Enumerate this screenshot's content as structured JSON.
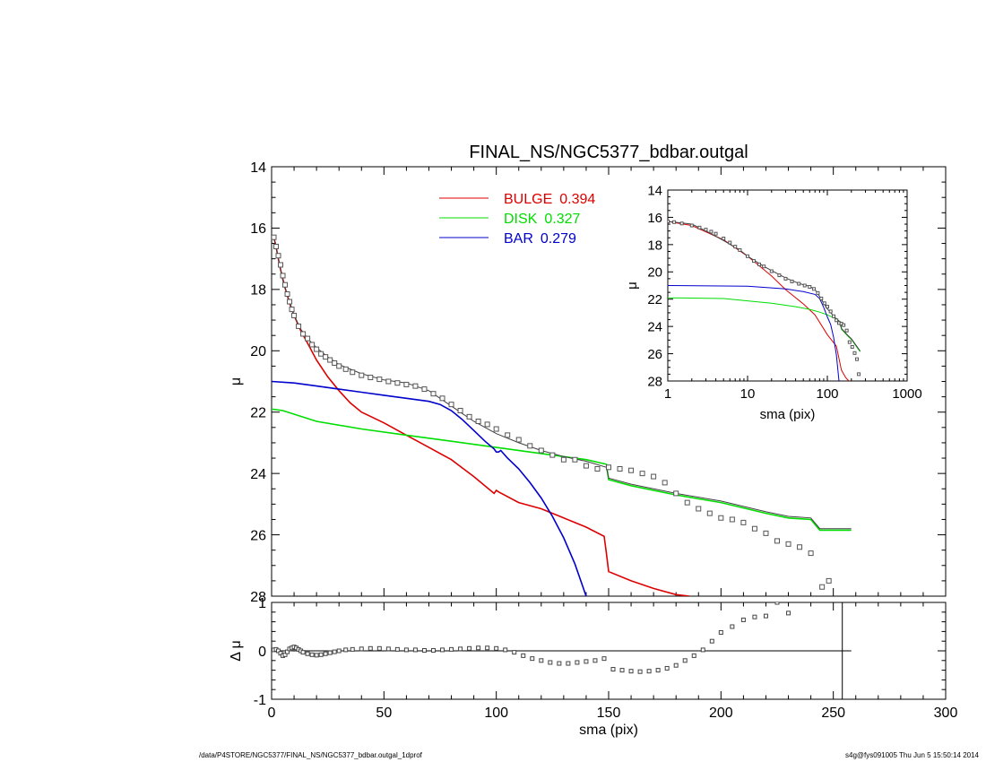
{
  "title": "FINAL_NS/NGC5377_bdbar.outgal",
  "footer": {
    "left": "/data/P4STORE/NGC5377/FINAL_NS/NGC5377_bdbar.outgal_1dprof",
    "right": "s4g@fys091005  Thu Jun  5 15:50:14 2014"
  },
  "colors": {
    "bulge": "#dd0000",
    "disk": "#00dd00",
    "bar": "#0000cc",
    "model": "#404040",
    "data": "#555555"
  },
  "chart_data": [
    {
      "type": "scatter",
      "panel": "main",
      "title": "FINAL_NS/NGC5377_bdbar.outgal",
      "xlabel": "sma (pix)",
      "ylabel": "μ",
      "xlim": [
        0,
        300
      ],
      "ylim": [
        28,
        14
      ],
      "xticks": [
        "0",
        "50",
        "100",
        "150",
        "200",
        "250",
        "300"
      ],
      "yticks": [
        "14",
        "16",
        "18",
        "20",
        "22",
        "24",
        "26",
        "28"
      ],
      "legend_position": "top-center",
      "legend": [
        {
          "label": "BULGE",
          "value": "0.394"
        },
        {
          "label": "DISK",
          "value": "0.327"
        },
        {
          "label": "BAR",
          "value": "0.279"
        }
      ],
      "series": [
        {
          "name": "BULGE",
          "color": "#dd0000",
          "x": [
            1,
            2,
            3,
            4,
            5,
            6,
            8,
            10,
            13,
            16,
            20,
            25,
            30,
            35,
            40,
            50,
            60,
            70,
            80,
            90,
            99,
            100,
            101,
            110,
            120,
            130,
            140,
            148,
            149,
            150,
            160,
            170,
            180,
            186
          ],
          "y": [
            16.3,
            16.6,
            17.0,
            17.35,
            17.65,
            17.95,
            18.45,
            18.85,
            19.35,
            19.75,
            20.3,
            20.85,
            21.3,
            21.7,
            22.0,
            22.35,
            22.75,
            23.15,
            23.55,
            24.1,
            24.65,
            24.55,
            24.6,
            24.95,
            25.15,
            25.45,
            25.75,
            26.05,
            26.6,
            27.2,
            27.5,
            27.75,
            27.95,
            28.0
          ]
        },
        {
          "name": "DISK",
          "color": "#00dd00",
          "x": [
            0,
            5,
            20,
            40,
            60,
            80,
            100,
            120,
            140,
            149,
            150,
            160,
            180,
            200,
            220,
            230,
            240,
            244,
            250,
            258
          ],
          "y": [
            21.9,
            21.95,
            22.3,
            22.55,
            22.75,
            22.95,
            23.15,
            23.35,
            23.55,
            23.7,
            24.2,
            24.4,
            24.7,
            24.95,
            25.3,
            25.45,
            25.5,
            25.85,
            25.85,
            25.85
          ]
        },
        {
          "name": "BAR",
          "color": "#0000cc",
          "x": [
            0,
            10,
            20,
            30,
            40,
            50,
            60,
            70,
            75,
            80,
            85,
            90,
            95,
            99,
            100,
            101,
            102,
            105,
            110,
            115,
            120,
            125,
            130,
            135,
            140
          ],
          "y": [
            21.0,
            21.05,
            21.15,
            21.25,
            21.35,
            21.45,
            21.55,
            21.65,
            21.75,
            21.95,
            22.25,
            22.6,
            22.95,
            23.2,
            23.3,
            23.3,
            23.25,
            23.5,
            23.85,
            24.3,
            24.8,
            25.4,
            26.1,
            26.95,
            28.0
          ]
        },
        {
          "name": "model",
          "color": "#404040",
          "x": [
            1,
            3,
            5,
            8,
            10,
            13,
            16,
            20,
            25,
            30,
            40,
            50,
            60,
            70,
            80,
            90,
            100,
            110,
            120,
            130,
            140,
            149,
            150,
            160,
            180,
            200,
            220,
            230,
            240,
            244,
            250,
            258
          ],
          "y": [
            16.3,
            17.0,
            17.7,
            18.4,
            18.85,
            19.3,
            19.6,
            19.9,
            20.2,
            20.45,
            20.75,
            20.95,
            21.05,
            21.3,
            21.8,
            22.3,
            22.7,
            23.0,
            23.25,
            23.45,
            23.6,
            23.8,
            24.15,
            24.35,
            24.65,
            24.9,
            25.25,
            25.4,
            25.45,
            25.8,
            25.8,
            25.8
          ]
        },
        {
          "name": "data",
          "color": "#555555",
          "marker": "open-square",
          "x": [
            1,
            2,
            3,
            4,
            5,
            6,
            7,
            8,
            9,
            10,
            12,
            14,
            16,
            18,
            20,
            22,
            24,
            26,
            28,
            30,
            33,
            36,
            40,
            44,
            48,
            52,
            56,
            60,
            64,
            68,
            72,
            76,
            80,
            84,
            88,
            92,
            96,
            100,
            105,
            110,
            115,
            120,
            125,
            130,
            135,
            140,
            145,
            150,
            155,
            160,
            165,
            170,
            175,
            180,
            185,
            190,
            195,
            200,
            205,
            210,
            215,
            220,
            225,
            230,
            235,
            240,
            245,
            248
          ],
          "y": [
            16.3,
            16.6,
            16.9,
            17.2,
            17.55,
            17.85,
            18.15,
            18.4,
            18.65,
            18.85,
            19.2,
            19.45,
            19.6,
            19.8,
            19.95,
            20.1,
            20.2,
            20.3,
            20.4,
            20.5,
            20.6,
            20.7,
            20.8,
            20.87,
            20.93,
            21.0,
            21.05,
            21.1,
            21.15,
            21.25,
            21.4,
            21.55,
            21.75,
            21.95,
            22.15,
            22.3,
            22.4,
            22.55,
            22.75,
            22.9,
            23.1,
            23.25,
            23.4,
            23.55,
            23.55,
            23.75,
            23.85,
            23.8,
            23.85,
            23.9,
            24.0,
            24.1,
            24.3,
            24.65,
            24.95,
            25.15,
            25.3,
            25.45,
            25.5,
            25.6,
            25.8,
            25.95,
            26.2,
            26.3,
            26.4,
            26.6,
            27.7,
            27.5
          ]
        }
      ]
    },
    {
      "type": "scatter",
      "panel": "inset",
      "xlabel": "sma (pix)",
      "ylabel": "μ",
      "xlim": [
        1,
        1000
      ],
      "xscale": "log",
      "ylim": [
        28,
        14
      ],
      "xticks": [
        "1",
        "10",
        "100",
        "1000"
      ],
      "yticks": [
        "14",
        "16",
        "18",
        "20",
        "22",
        "24",
        "26",
        "28"
      ],
      "series": [
        {
          "name": "BULGE",
          "color": "#dd0000",
          "x": [
            1,
            2,
            5,
            10,
            20,
            30,
            50,
            70,
            100,
            130,
            150,
            170,
            186
          ],
          "y": [
            16.3,
            16.6,
            17.65,
            18.85,
            20.3,
            21.3,
            22.35,
            23.15,
            24.6,
            25.45,
            27.2,
            27.75,
            28.0
          ]
        },
        {
          "name": "DISK",
          "color": "#00dd00",
          "x": [
            1,
            5,
            20,
            40,
            60,
            80,
            100,
            130,
            149,
            150,
            180,
            200,
            230,
            258
          ],
          "y": [
            21.9,
            21.95,
            22.3,
            22.55,
            22.75,
            22.95,
            23.15,
            23.45,
            23.7,
            24.2,
            24.7,
            24.95,
            25.45,
            25.85
          ]
        },
        {
          "name": "BAR",
          "color": "#0000cc",
          "x": [
            1,
            10,
            30,
            50,
            70,
            80,
            90,
            100,
            110,
            120,
            130,
            140
          ],
          "y": [
            21.0,
            21.05,
            21.25,
            21.45,
            21.65,
            21.95,
            22.6,
            23.3,
            23.85,
            24.8,
            26.1,
            28.0
          ]
        },
        {
          "name": "model",
          "color": "#404040",
          "x": [
            1,
            2,
            3,
            5,
            8,
            10,
            16,
            20,
            30,
            40,
            50,
            60,
            70,
            80,
            90,
            100,
            120,
            140,
            150,
            180,
            200,
            230,
            258
          ],
          "y": [
            16.3,
            16.5,
            17.0,
            17.7,
            18.4,
            18.85,
            19.6,
            19.9,
            20.45,
            20.75,
            20.95,
            21.05,
            21.3,
            21.8,
            22.3,
            22.7,
            23.25,
            23.6,
            24.15,
            24.65,
            24.9,
            25.4,
            25.8
          ]
        },
        {
          "name": "data",
          "color": "#555555",
          "marker": "open-square",
          "x": [
            1,
            1.2,
            1.5,
            2,
            2.5,
            3,
            3.5,
            4,
            5,
            6,
            7,
            8,
            10,
            12,
            14,
            16,
            20,
            25,
            30,
            36,
            44,
            52,
            60,
            68,
            76,
            84,
            92,
            100,
            110,
            120,
            130,
            140,
            150,
            160,
            175,
            190,
            205,
            220,
            235,
            248
          ],
          "y": [
            16.3,
            16.35,
            16.45,
            16.6,
            16.75,
            16.9,
            17.05,
            17.2,
            17.55,
            17.85,
            18.15,
            18.4,
            18.85,
            19.2,
            19.45,
            19.6,
            19.95,
            20.25,
            20.5,
            20.7,
            20.87,
            21.0,
            21.1,
            21.25,
            21.55,
            21.95,
            22.3,
            22.55,
            22.9,
            23.25,
            23.55,
            23.75,
            23.8,
            23.9,
            24.3,
            25.15,
            25.5,
            25.95,
            26.4,
            27.5
          ]
        }
      ]
    },
    {
      "type": "scatter",
      "panel": "residual",
      "xlabel": "sma (pix)",
      "ylabel": "Δ μ",
      "xlim": [
        0,
        300
      ],
      "ylim": [
        -1,
        1
      ],
      "xticks": [
        "0",
        "50",
        "100",
        "150",
        "200",
        "250",
        "300"
      ],
      "yticks": [
        "-1",
        "0",
        "1"
      ],
      "vertical_line_x": 254,
      "zero_line": true,
      "series": [
        {
          "name": "residual",
          "color": "#444444",
          "marker": "open-square",
          "x": [
            1,
            2,
            3,
            4,
            5,
            6,
            7,
            8,
            9,
            10,
            11,
            12,
            13,
            14,
            16,
            18,
            20,
            22,
            24,
            26,
            28,
            30,
            33,
            36,
            40,
            44,
            48,
            52,
            56,
            60,
            64,
            68,
            72,
            76,
            80,
            84,
            88,
            92,
            96,
            100,
            104,
            108,
            112,
            116,
            120,
            124,
            128,
            132,
            136,
            140,
            144,
            148,
            152,
            156,
            160,
            164,
            168,
            172,
            176,
            180,
            184,
            188,
            192,
            196,
            200,
            205,
            210,
            215,
            220,
            225,
            230
          ],
          "y": [
            0.02,
            0.03,
            0.0,
            -0.05,
            -0.1,
            -0.08,
            -0.02,
            0.04,
            0.06,
            0.08,
            0.06,
            0.03,
            0.0,
            -0.03,
            -0.06,
            -0.08,
            -0.09,
            -0.08,
            -0.06,
            -0.04,
            -0.02,
            0.0,
            0.02,
            0.03,
            0.04,
            0.05,
            0.05,
            0.04,
            0.03,
            0.02,
            0.02,
            0.01,
            0.01,
            0.02,
            0.03,
            0.04,
            0.05,
            0.06,
            0.06,
            0.05,
            0.02,
            -0.03,
            -0.1,
            -0.16,
            -0.2,
            -0.24,
            -0.26,
            -0.26,
            -0.24,
            -0.22,
            -0.2,
            -0.16,
            -0.38,
            -0.4,
            -0.42,
            -0.43,
            -0.42,
            -0.4,
            -0.36,
            -0.3,
            -0.2,
            -0.1,
            0.02,
            0.2,
            0.38,
            0.5,
            0.64,
            0.7,
            0.72,
            1.0,
            0.78
          ]
        }
      ]
    }
  ]
}
